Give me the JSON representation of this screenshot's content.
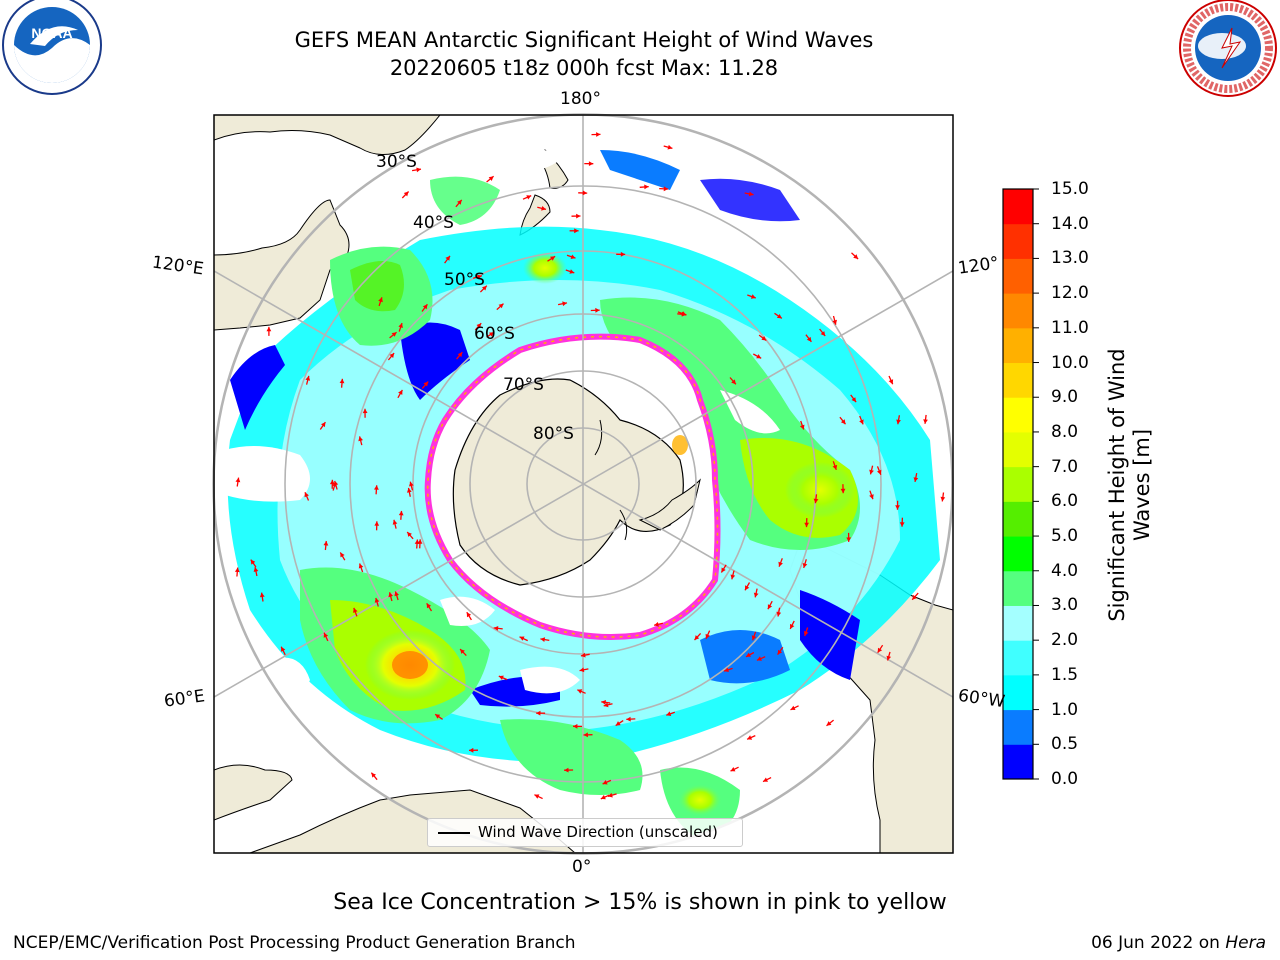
{
  "header": {
    "title_line1": "GEFS MEAN Antarctic Significant Height of Wind Waves",
    "title_line2": "20220605 t18z 000h fcst   Max: 11.28"
  },
  "logos": {
    "left": "NOAA",
    "left_ring_text": "NATIONAL OCEANIC AND ATMOSPHERIC ADMINISTRATION · U.S. DEPARTMENT OF COMMERCE",
    "right_ring_text": "NATIONAL WEATHER SERVICE"
  },
  "map": {
    "longitude_labels": {
      "top": "180°",
      "bottom": "0°",
      "upper_left": "120°E",
      "upper_right": "120°",
      "lower_left": "60°E",
      "lower_right": "60°W"
    },
    "latitude_labels": [
      "30°S",
      "40°S",
      "50°S",
      "60°S",
      "70°S",
      "80°S"
    ],
    "legend": {
      "label": "Wind Wave Direction (unscaled)"
    },
    "colors": {
      "land": "#efebd8",
      "ocean_no_data": "#ffffff",
      "sea_ice_edge": "#ff33dd",
      "arrow": "#ff0000",
      "graticule": "#b4b4b4"
    }
  },
  "colorbar": {
    "title_line1": "Significant Height of Wind",
    "title_line2": "Waves [m]",
    "ticks": [
      "0.0",
      "0.5",
      "1.0",
      "1.5",
      "2.0",
      "3.0",
      "4.0",
      "5.0",
      "6.0",
      "7.0",
      "8.0",
      "9.0",
      "10.0",
      "11.0",
      "12.0",
      "13.0",
      "14.0",
      "15.0"
    ],
    "colors": [
      "#0000ff",
      "#0a7cff",
      "#00ffff",
      "#40ffff",
      "#a4ffff",
      "#55ff7f",
      "#00ff00",
      "#55ee00",
      "#aaff00",
      "#e4ff00",
      "#ffff00",
      "#ffd700",
      "#ffb000",
      "#ff8800",
      "#ff6000",
      "#ff3000",
      "#ff0000"
    ]
  },
  "notes": {
    "ice": "Sea Ice Concentration > 15% is shown in pink to yellow"
  },
  "footer": {
    "left": "NCEP/EMC/Verification Post Processing Product Generation Branch",
    "right_date": "06 Jun 2022 on",
    "right_machine": "Hera"
  }
}
